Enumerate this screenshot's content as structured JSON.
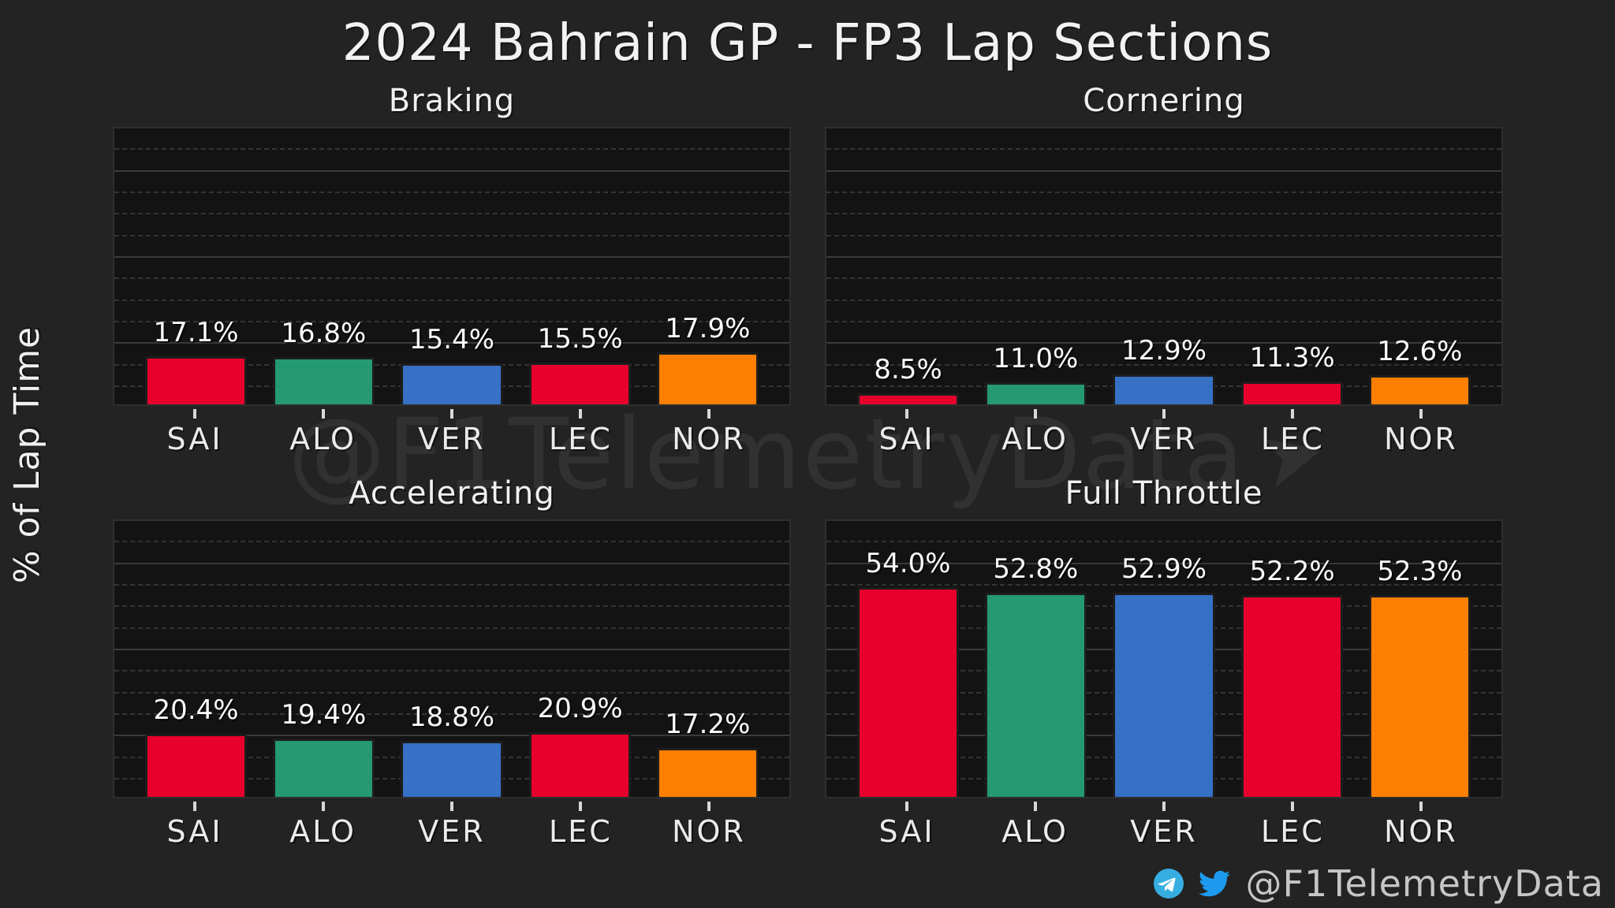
{
  "figure": {
    "title": "2024 Bahrain GP - FP3 Lap Sections",
    "ylabel": "% of Lap Time",
    "watermark": "@F1TelemetryData",
    "background_color": "#232323",
    "plot_background_color": "#131313"
  },
  "chart_data": {
    "type": "bar",
    "categories": [
      "SAI",
      "ALO",
      "VER",
      "LEC",
      "NOR"
    ],
    "bar_colors": [
      "#e8002d",
      "#259971",
      "#3671c6",
      "#e8002d",
      "#ff8001"
    ],
    "ylim": [
      6,
      70
    ],
    "grid": {
      "grid_on": true,
      "minor_step": 5,
      "major_step": 20,
      "major_color": "#3a3a3a",
      "minor_color": "#343434"
    },
    "legend": "none",
    "y_tick_labels": "none",
    "subplots": [
      {
        "title": "Braking",
        "values": [
          17.1,
          16.8,
          15.4,
          15.5,
          17.9
        ]
      },
      {
        "title": "Cornering",
        "values": [
          8.5,
          11.0,
          12.9,
          11.3,
          12.6
        ]
      },
      {
        "title": "Accelerating",
        "values": [
          20.4,
          19.4,
          18.8,
          20.9,
          17.2
        ]
      },
      {
        "title": "Full Throttle",
        "values": [
          54.0,
          52.8,
          52.9,
          52.2,
          52.3
        ]
      }
    ],
    "value_label_suffix": "%"
  },
  "footer": {
    "handle": "@F1TelemetryData",
    "telegram_color": "#37aee2",
    "twitter_color": "#1d9bf0"
  }
}
